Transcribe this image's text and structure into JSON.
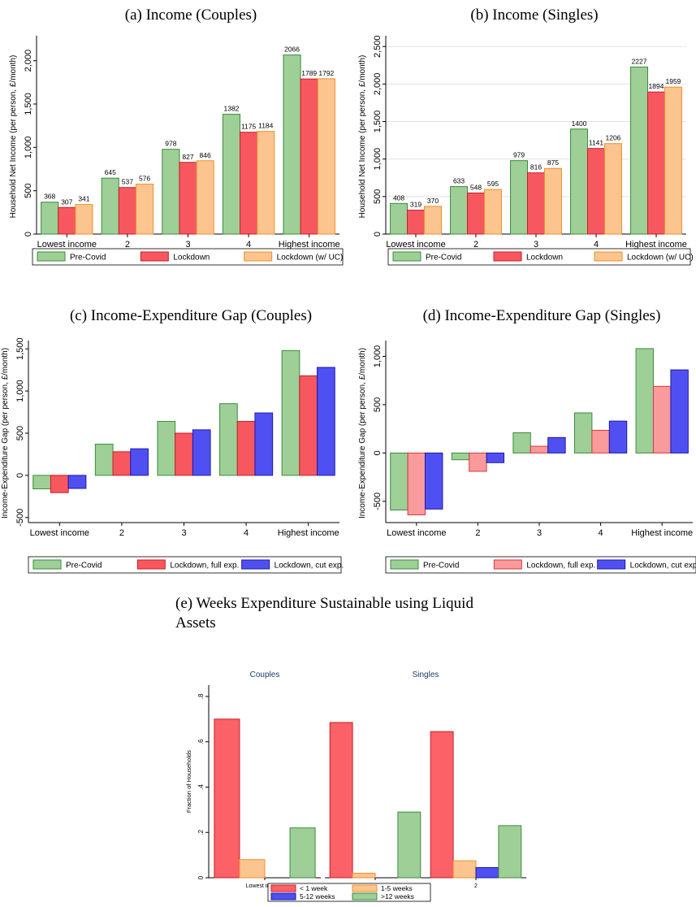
{
  "titles": {
    "a": "(a) Income (Couples)",
    "b": "(b) Income (Singles)",
    "c": "(c) Income-Expenditure Gap (Couples)",
    "d": "(d) Income-Expenditure Gap (Singles)",
    "e_line1": "(e) Weeks Expenditure Sustainable using Liquid",
    "e_line2": "Assets"
  },
  "chart_data": [
    {
      "id": "a",
      "type": "bar",
      "categories": [
        "Lowest income",
        "2",
        "3",
        "4",
        "Highest income"
      ],
      "series": [
        {
          "name": "Pre-Covid",
          "values": [
            368,
            645,
            978,
            1382,
            2066
          ],
          "fill": "#9dcf97",
          "stroke": "#3d8b3d"
        },
        {
          "name": "Lockdown",
          "values": [
            307,
            537,
            827,
            1175,
            1789
          ],
          "fill": "#f7585f",
          "stroke": "#c81e28"
        },
        {
          "name": "Lockdown (w/ UC)",
          "values": [
            341,
            576,
            846,
            1184,
            1792
          ],
          "fill": "#fcc48e",
          "stroke": "#e8922e"
        }
      ],
      "data_labels": true,
      "ylabel": "Household Net Income (per person, £/month)",
      "ylim": [
        0,
        2250
      ],
      "yticks": [
        0,
        500,
        1000,
        1500,
        2000
      ],
      "ytick_labels": [
        "0",
        "500",
        "1,000",
        "1,500",
        "2,000"
      ],
      "legend": "bottom",
      "grid": false
    },
    {
      "id": "b",
      "type": "bar",
      "categories": [
        "Lowest income",
        "2",
        "3",
        "4",
        "Highest income"
      ],
      "series": [
        {
          "name": "Pre-Covid",
          "values": [
            408,
            633,
            979,
            1400,
            2227
          ],
          "fill": "#9dcf97",
          "stroke": "#3d8b3d"
        },
        {
          "name": "Lockdown",
          "values": [
            319,
            548,
            816,
            1141,
            1894
          ],
          "fill": "#f7585f",
          "stroke": "#c81e28"
        },
        {
          "name": "Lockdown (w/ UC)",
          "values": [
            370,
            595,
            875,
            1206,
            1959
          ],
          "fill": "#fcc48e",
          "stroke": "#e8922e"
        }
      ],
      "data_labels": true,
      "ylabel": "Household Net Income (per person, £/month)",
      "ylim": [
        0,
        2600
      ],
      "yticks": [
        0,
        500,
        1000,
        1500,
        2000,
        2500
      ],
      "ytick_labels": [
        "0",
        "500",
        "1,000",
        "1,500",
        "2,000",
        "2,500"
      ],
      "legend": "bottom",
      "grid": true
    },
    {
      "id": "c",
      "type": "bar",
      "categories": [
        "Lowest income",
        "2",
        "3",
        "4",
        "Highest income"
      ],
      "series": [
        {
          "name": "Pre-Covid",
          "values": [
            -160,
            370,
            640,
            850,
            1480
          ],
          "fill": "#9dcf97",
          "stroke": "#3d8b3d"
        },
        {
          "name": "Lockdown, full exp.",
          "values": [
            -205,
            280,
            500,
            640,
            1180
          ],
          "fill": "#f7585f",
          "stroke": "#c81e28"
        },
        {
          "name": "Lockdown, cut exp.",
          "values": [
            -155,
            315,
            540,
            740,
            1280
          ],
          "fill": "#5050f2",
          "stroke": "#1a1aa8"
        }
      ],
      "data_labels": false,
      "ylabel": "Income-Expenditure Gap (per person, £/month)",
      "ylim": [
        -560,
        1560
      ],
      "yticks": [
        -500,
        0,
        500,
        1000,
        1500
      ],
      "ytick_labels": [
        "-500",
        "0",
        "500",
        "1,000",
        "1,500"
      ],
      "legend": "bottom",
      "grid": false
    },
    {
      "id": "d",
      "type": "bar",
      "categories": [
        "Lowest income",
        "2",
        "3",
        "4",
        "Highest income"
      ],
      "series": [
        {
          "name": "Pre-Covid",
          "values": [
            -590,
            -70,
            210,
            415,
            1080
          ],
          "fill": "#9dcf97",
          "stroke": "#3d8b3d"
        },
        {
          "name": "Lockdown, full exp.",
          "values": [
            -640,
            -190,
            70,
            235,
            690
          ],
          "fill": "#f99a9c",
          "stroke": "#d93a40"
        },
        {
          "name": "Lockdown, cut exp",
          "values": [
            -580,
            -100,
            160,
            330,
            860
          ],
          "fill": "#5050f2",
          "stroke": "#1a1aa8"
        }
      ],
      "data_labels": false,
      "ylabel": "Income-Expenditure Gap (per person, £/month)",
      "ylim": [
        -720,
        1130
      ],
      "yticks": [
        -500,
        0,
        500,
        1000
      ],
      "ytick_labels": [
        "-500",
        "0",
        "500",
        "1,000"
      ],
      "legend": "bottom",
      "grid": false
    },
    {
      "id": "e",
      "type": "bar",
      "panels": [
        {
          "subtitle": "Couples",
          "categories": [
            "Lowest income"
          ],
          "series_values": [
            [
              0.7
            ],
            [
              0.08
            ],
            [
              0
            ],
            [
              0.22
            ]
          ]
        },
        {
          "subtitle": "Singles",
          "categories": [
            "Lowest income",
            "2"
          ],
          "series_values": [
            [
              0.685,
              0.645
            ],
            [
              0.02,
              0.075
            ],
            [
              0,
              0.045
            ],
            [
              0.29,
              0.23
            ]
          ]
        }
      ],
      "series": [
        {
          "name": "< 1 week",
          "fill": "#fb6167",
          "stroke": "#c81e28"
        },
        {
          "name": "1-5 weeks",
          "fill": "#fcc48e",
          "stroke": "#e8922e"
        },
        {
          "name": "5-12 weeks",
          "fill": "#5050f2",
          "stroke": "#1a1aa8"
        },
        {
          "name": ">12 weeks",
          "fill": "#9dcf97",
          "stroke": "#3d8b3d"
        }
      ],
      "ylabel": "Fraction of Households",
      "ylim": [
        0,
        0.85
      ],
      "yticks": [
        0,
        0.2,
        0.4,
        0.6,
        0.8
      ],
      "ytick_labels": [
        "0",
        ".2",
        ".4",
        ".6",
        ".8"
      ],
      "legend": "bottom, 2 columns"
    }
  ]
}
